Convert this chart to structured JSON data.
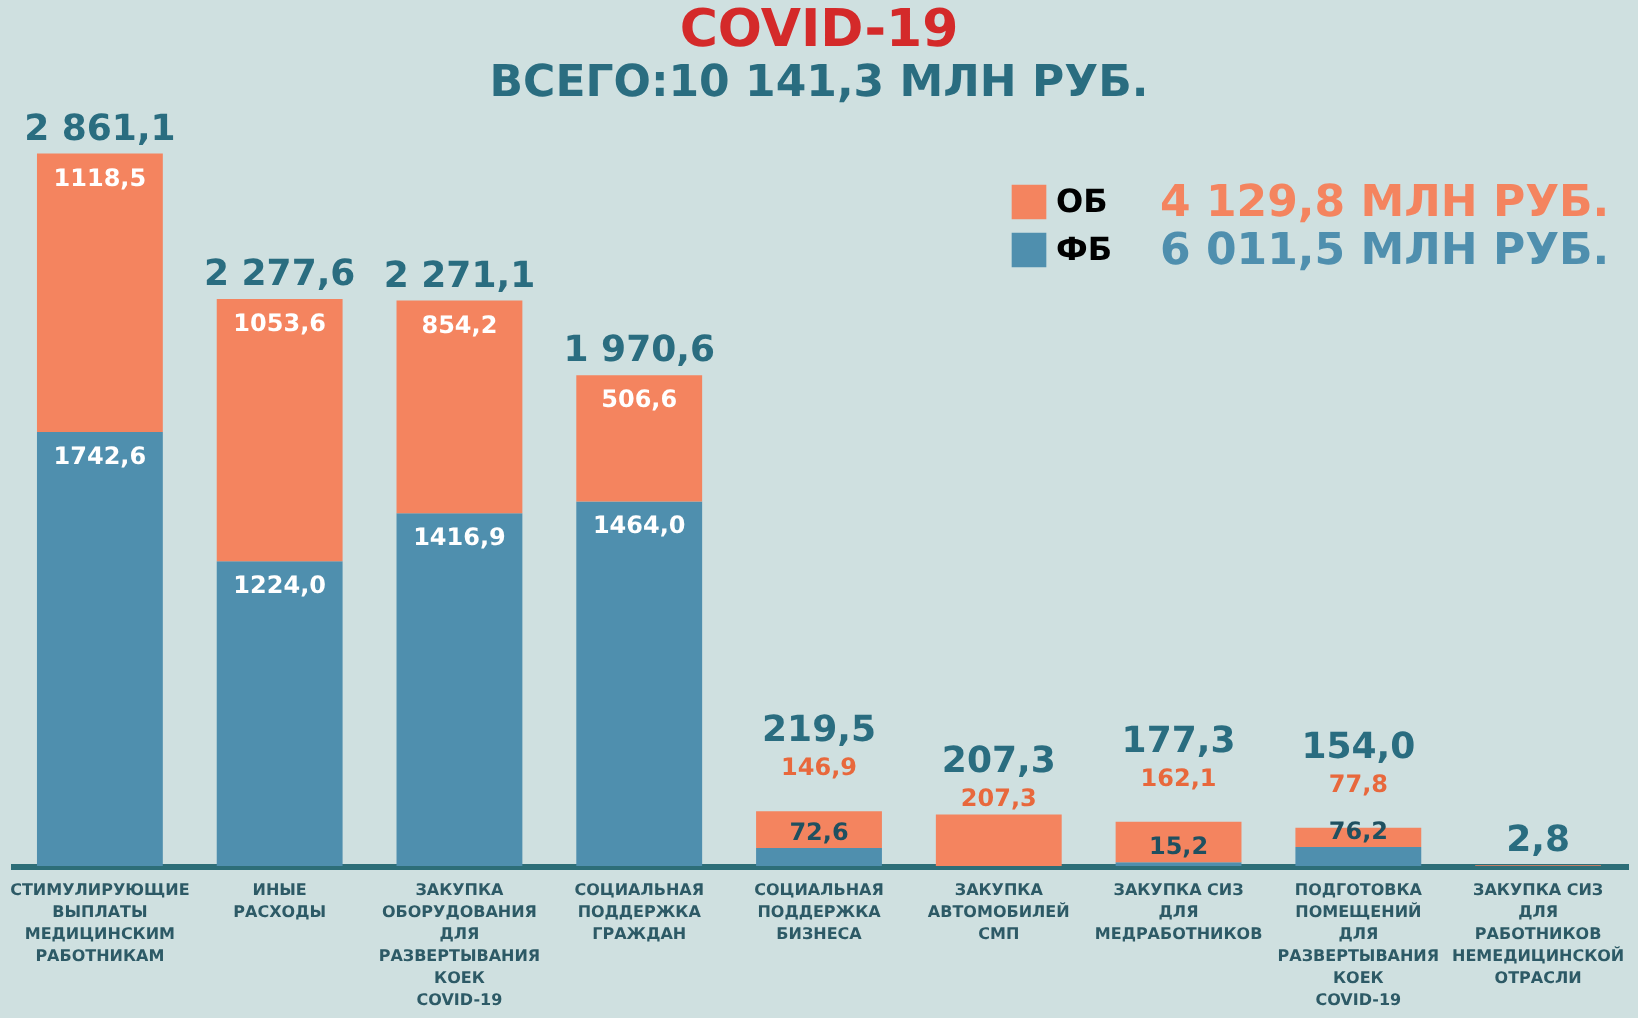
{
  "chart_data": {
    "type": "bar",
    "stacked": true,
    "title": "COVID-19",
    "subtitle": "ВСЕГО:10 141,3 МЛН РУБ.",
    "categories": [
      "СТИМУЛИРУЮЩИЕ\nВЫПЛАТЫ\nМЕДИЦИНСКИМ\nРАБОТНИКАМ",
      "ИНЫЕ\nРАСХОДЫ",
      "ЗАКУПКА\nОБОРУДОВАНИЯ\nДЛЯ\nРАЗВЕРТЫВАНИЯ\nКОЕК\nCOVID-19",
      "СОЦИАЛЬНАЯ\nПОДДЕРЖКА\nГРАЖДАН",
      "СОЦИАЛЬНАЯ\nПОДДЕРЖКА\nБИЗНЕСА",
      "ЗАКУПКА\nАВТОМОБИЛЕЙ\nСМП",
      "ЗАКУПКА СИЗ\nДЛЯ\nМЕДРАБОТНИКОВ",
      "ПОДГОТОВКА\nПОМЕЩЕНИЙ\nДЛЯ\nРАЗВЕРТЫВАНИЯ\nКОЕК\nCOVID-19",
      "ЗАКУПКА СИЗ\nДЛЯ\nРАБОТНИКОВ\nНЕМЕДИЦИНСКОЙ\nОТРАСЛИ"
    ],
    "series": [
      {
        "name": "ФБ",
        "color": "#4f8fae",
        "values": [
          1742.6,
          1224.0,
          1416.9,
          1464.0,
          72.6,
          null,
          15.2,
          76.2,
          null
        ],
        "value_labels": [
          "1742,6",
          "1224,0",
          "1416,9",
          "1464,0",
          "72,6",
          null,
          "15,2",
          "76,2",
          null
        ]
      },
      {
        "name": "ОБ",
        "color": "#f4845f",
        "values": [
          1118.5,
          1053.6,
          854.2,
          506.6,
          146.9,
          207.3,
          162.1,
          77.8,
          2.8
        ],
        "value_labels": [
          "1118,5",
          "1053,6",
          "854,2",
          "506,6",
          "146,9",
          "207,3",
          "162,1",
          "77,8",
          null
        ]
      }
    ],
    "totals": [
      "2 861,1",
      "2 277,6",
      "2 271,1",
      "1 970,6",
      "219,5",
      "207,3",
      "177,3",
      "154,0",
      "2,8"
    ],
    "legend": "top right",
    "annotations": [
      "4 129,8 МЛН РУБ.",
      "6 011,5 МЛН РУБ."
    ],
    "grid": false
  }
}
